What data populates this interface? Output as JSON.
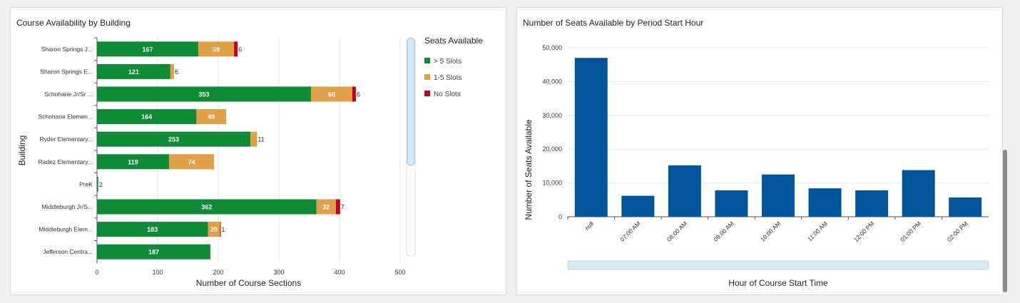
{
  "chart_data": [
    {
      "type": "bar",
      "orientation": "horizontal",
      "stacked": true,
      "title": "Course Availability by Building",
      "xlabel": "Number of Course Sections",
      "ylabel": "Building",
      "xlim": [
        0,
        500
      ],
      "xticks": [
        0,
        100,
        200,
        300,
        400,
        500
      ],
      "categories": [
        "Sharon Springs J...",
        "Sharon Springs E...",
        "Schoharie Jr/Sr ...",
        "Schoharie Elemen...",
        "Ryder Elementary...",
        "Radez Elementary...",
        "PreK",
        "Middleburgh Jr/S...",
        "Middleburgh Elem...",
        "Jefferson Centra..."
      ],
      "legend_title": "Seats Available",
      "legend_position": "right",
      "series": [
        {
          "name": "> 5 Slots",
          "color": "#0f8a37",
          "values": [
            167,
            121,
            353,
            164,
            253,
            119,
            2,
            362,
            183,
            187
          ]
        },
        {
          "name": "1-5 Slots",
          "color": "#e0a047",
          "values": [
            59,
            6,
            68,
            49,
            11,
            74,
            0,
            32,
            20,
            0
          ]
        },
        {
          "name": "No Slots",
          "color": "#c0001d",
          "values": [
            6,
            0,
            6,
            0,
            0,
            0,
            0,
            7,
            1,
            0
          ]
        }
      ]
    },
    {
      "type": "bar",
      "title": "Number of Seats Available by Period Start Hour",
      "xlabel": "Hour of Course Start Time",
      "ylabel": "Number of Seats Available",
      "ylim": [
        0,
        50000
      ],
      "yticks": [
        "0",
        "10,000",
        "20,000",
        "30,000",
        "40,000",
        "50,000"
      ],
      "color": "#02559a",
      "categories": [
        "null",
        "07:00 AM",
        "08:00 AM",
        "09:00 AM",
        "10:00 AM",
        "11:00 AM",
        "12:00 PM",
        "01:00 PM",
        "02:00 PM"
      ],
      "values": [
        47000,
        6200,
        15200,
        7800,
        12500,
        8400,
        7800,
        13800,
        5700
      ]
    }
  ]
}
